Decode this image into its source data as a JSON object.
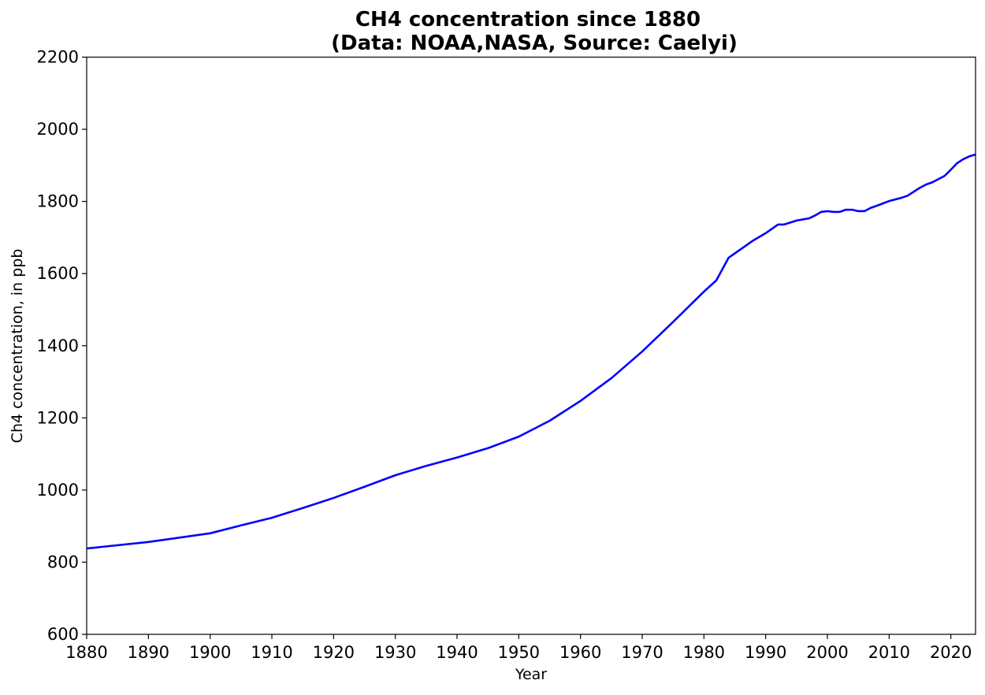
{
  "chart_data": {
    "type": "line",
    "title": "CH4 concentration since 1880\n(Data: NOAA,NASA, Source: Caelyi)",
    "title_lines": [
      "CH4 concentration since 1880",
      "(Data: NOAA,NASA, Source: Caelyi)"
    ],
    "xlabel": "Year",
    "ylabel": "Ch4 concentration, in ppb",
    "xlim": [
      1880,
      2024
    ],
    "ylim": [
      600,
      2200
    ],
    "xticks": [
      1880,
      1890,
      1900,
      1910,
      1920,
      1930,
      1940,
      1950,
      1960,
      1970,
      1980,
      1990,
      2000,
      2010,
      2020
    ],
    "yticks": [
      600,
      800,
      1000,
      1200,
      1400,
      1600,
      1800,
      2000,
      2200
    ],
    "grid": false,
    "line_color": "#0000ff",
    "series": [
      {
        "x": [
          1880,
          1890,
          1900,
          1905,
          1910,
          1912,
          1915,
          1920,
          1925,
          1930,
          1935,
          1940,
          1945,
          1950,
          1955,
          1960,
          1965,
          1970,
          1975,
          1980,
          1982,
          1984,
          1986,
          1988,
          1990,
          1992,
          1993,
          1995,
          1997,
          1998,
          1999,
          2000,
          2001,
          2002,
          2003,
          2004,
          2005,
          2006,
          2007,
          2008,
          2010,
          2012,
          2013,
          2014,
          2015,
          2016,
          2017,
          2018,
          2019,
          2020,
          2021,
          2022,
          2023,
          2024
        ],
        "y": [
          838,
          856,
          880,
          902,
          923,
          934,
          950,
          978,
          1009,
          1041,
          1067,
          1090,
          1116,
          1148,
          1192,
          1247,
          1310,
          1384,
          1466,
          1550,
          1581,
          1644,
          1668,
          1692,
          1712,
          1736,
          1736,
          1747,
          1753,
          1761,
          1771,
          1773,
          1771,
          1771,
          1777,
          1777,
          1773,
          1773,
          1782,
          1788,
          1801,
          1810,
          1816,
          1827,
          1838,
          1847,
          1853,
          1862,
          1871,
          1888,
          1906,
          1917,
          1925,
          1930
        ]
      }
    ]
  }
}
